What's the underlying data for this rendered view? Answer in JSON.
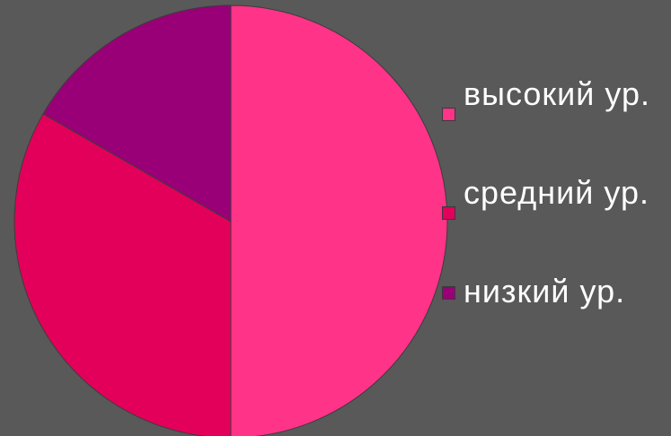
{
  "chart_data": {
    "type": "pie",
    "title": "",
    "series": [
      {
        "name": "высокий ур.",
        "value": 50,
        "color": "#ff3388"
      },
      {
        "name": "средний ур.",
        "value": 33.3,
        "color": "#e3005a"
      },
      {
        "name": "низкий ур.",
        "value": 16.7,
        "color": "#990077"
      }
    ],
    "legend_placement": "right",
    "start_angle_deg": 0,
    "direction": "clockwise"
  }
}
